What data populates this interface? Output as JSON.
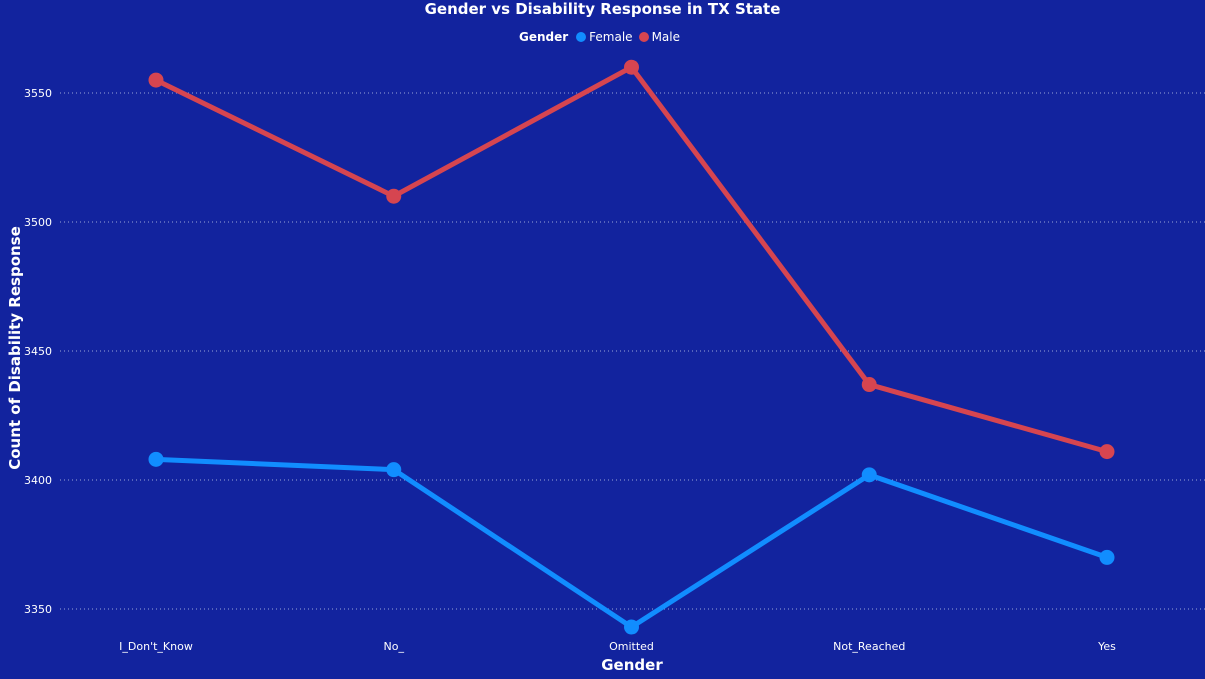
{
  "chart_data": {
    "type": "line",
    "title": "Gender vs Disability Response in TX State",
    "xlabel": "Gender",
    "ylabel": "Count of Disability Response",
    "legend_title": "Gender",
    "legend_position": "top-center",
    "categories": [
      "I_Don't_Know",
      "No_",
      "Omitted",
      "Not_Reached",
      "Yes"
    ],
    "series": [
      {
        "name": "Female",
        "color": "#118dff",
        "values": [
          3408,
          3404,
          3343,
          3402,
          3370
        ]
      },
      {
        "name": "Male",
        "color": "#d64550",
        "values": [
          3555,
          3510,
          3560,
          3437,
          3411
        ]
      }
    ],
    "yticks": [
      3350,
      3400,
      3450,
      3500,
      3550
    ],
    "ylim": [
      3342,
      3572
    ],
    "grid": true,
    "background_color": "#12239e"
  }
}
